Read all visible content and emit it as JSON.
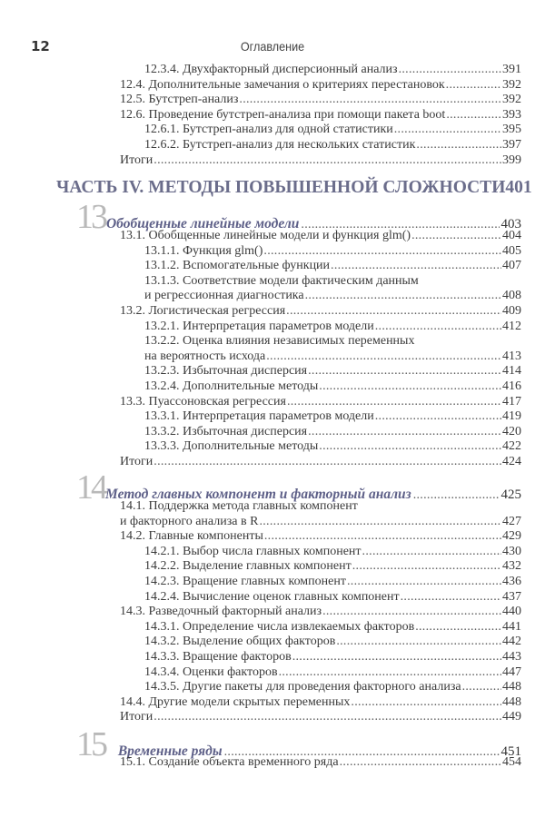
{
  "header": {
    "page_number": "12",
    "running_title": "Оглавление"
  },
  "block1": [
    {
      "level": 2,
      "lines": [
        "12.3.4. Двухфакторный дисперсионный анализ"
      ],
      "page": "391"
    },
    {
      "level": 1,
      "lines": [
        "12.4. Дополнительные замечания о критериях перестановок"
      ],
      "page": "392"
    },
    {
      "level": 1,
      "lines": [
        "12.5. Бутстреп-анализ"
      ],
      "page": "392"
    },
    {
      "level": 1,
      "lines": [
        "12.6. Проведение бутстреп-анализа при помощи пакета boot"
      ],
      "page": "393"
    },
    {
      "level": 2,
      "lines": [
        "12.6.1. Бутстреп-анализ для одной статистики"
      ],
      "page": "395"
    },
    {
      "level": 2,
      "lines": [
        "12.6.2. Бутстреп-анализ для нескольких статистик"
      ],
      "page": "397"
    },
    {
      "level": 1,
      "lines": [
        "Итоги"
      ],
      "page": "399"
    }
  ],
  "part": {
    "title": "ЧАСТЬ IV. МЕТОДЫ ПОВЫШЕННОЙ СЛОЖНОСТИ",
    "page": "401"
  },
  "chapters": [
    {
      "number": "13",
      "title": "Обобщенные линейные модели",
      "page": "403",
      "entries": [
        {
          "level": 1,
          "lines": [
            "13.1. Обобщенные линейные модели и функция glm()"
          ],
          "page": "404"
        },
        {
          "level": 2,
          "lines": [
            "13.1.1. Функция glm()"
          ],
          "page": "405"
        },
        {
          "level": 2,
          "lines": [
            "13.1.2. Вспомогательные функции"
          ],
          "page": "407"
        },
        {
          "level": 2,
          "lines": [
            "13.1.3. Соответствие модели фактическим данным",
            "и регрессионная диагностика"
          ],
          "page": "408"
        },
        {
          "level": 1,
          "lines": [
            "13.2. Логистическая регрессия"
          ],
          "page": "409"
        },
        {
          "level": 2,
          "lines": [
            "13.2.1. Интерпретация параметров модели"
          ],
          "page": "412"
        },
        {
          "level": 2,
          "lines": [
            "13.2.2. Оценка влияния независимых переменных",
            "на вероятность исхода"
          ],
          "page": "413"
        },
        {
          "level": 2,
          "lines": [
            "13.2.3. Избыточная дисперсия"
          ],
          "page": "414"
        },
        {
          "level": 2,
          "lines": [
            "13.2.4. Дополнительные методы"
          ],
          "page": "416"
        },
        {
          "level": 1,
          "lines": [
            "13.3. Пуассоновская регрессия"
          ],
          "page": "417"
        },
        {
          "level": 2,
          "lines": [
            "13.3.1. Интерпретация параметров модели"
          ],
          "page": "419"
        },
        {
          "level": 2,
          "lines": [
            "13.3.2. Избыточная дисперсия"
          ],
          "page": "420"
        },
        {
          "level": 2,
          "lines": [
            "13.3.3. Дополнительные методы"
          ],
          "page": "422"
        },
        {
          "level": 1,
          "lines": [
            "Итоги"
          ],
          "page": "424"
        }
      ]
    },
    {
      "number": "14",
      "title": "Метод главных компонент и факторный анализ",
      "page": "425",
      "entries": [
        {
          "level": 1,
          "lines": [
            "14.1. Поддержка метода главных компонент",
            "и факторного анализа в R"
          ],
          "page": "427"
        },
        {
          "level": 1,
          "lines": [
            "14.2. Главные компоненты"
          ],
          "page": "429"
        },
        {
          "level": 2,
          "lines": [
            "14.2.1. Выбор числа главных компонент"
          ],
          "page": "430"
        },
        {
          "level": 2,
          "lines": [
            "14.2.2. Выделение главных компонент"
          ],
          "page": "432"
        },
        {
          "level": 2,
          "lines": [
            "14.2.3. Вращение главных компонент"
          ],
          "page": "436"
        },
        {
          "level": 2,
          "lines": [
            "14.2.4. Вычисление оценок главных компонент"
          ],
          "page": "437"
        },
        {
          "level": 1,
          "lines": [
            "14.3. Разведочный факторный анализ"
          ],
          "page": "440"
        },
        {
          "level": 2,
          "lines": [
            "14.3.1. Определение числа извлекаемых факторов"
          ],
          "page": "441"
        },
        {
          "level": 2,
          "lines": [
            "14.3.2. Выделение общих факторов"
          ],
          "page": "442"
        },
        {
          "level": 2,
          "lines": [
            "14.3.3. Вращение факторов"
          ],
          "page": "443"
        },
        {
          "level": 2,
          "lines": [
            "14.3.4. Оценки факторов"
          ],
          "page": "447"
        },
        {
          "level": 2,
          "lines": [
            "14.3.5. Другие пакеты для проведения факторного анализа"
          ],
          "page": "448"
        },
        {
          "level": 1,
          "lines": [
            "14.4. Другие модели скрытых переменных"
          ],
          "page": "448"
        },
        {
          "level": 1,
          "lines": [
            "Итоги"
          ],
          "page": "449"
        }
      ]
    },
    {
      "number": "15",
      "title": "Временные ряды",
      "page": "451",
      "entries": [
        {
          "level": 1,
          "lines": [
            "15.1. Создание объекта временного ряда"
          ],
          "page": "454"
        }
      ]
    }
  ],
  "colors": {
    "part_heading": "#6b6d8b",
    "chapter_title": "#5e6088",
    "chapter_number": "#b9b9b9"
  }
}
